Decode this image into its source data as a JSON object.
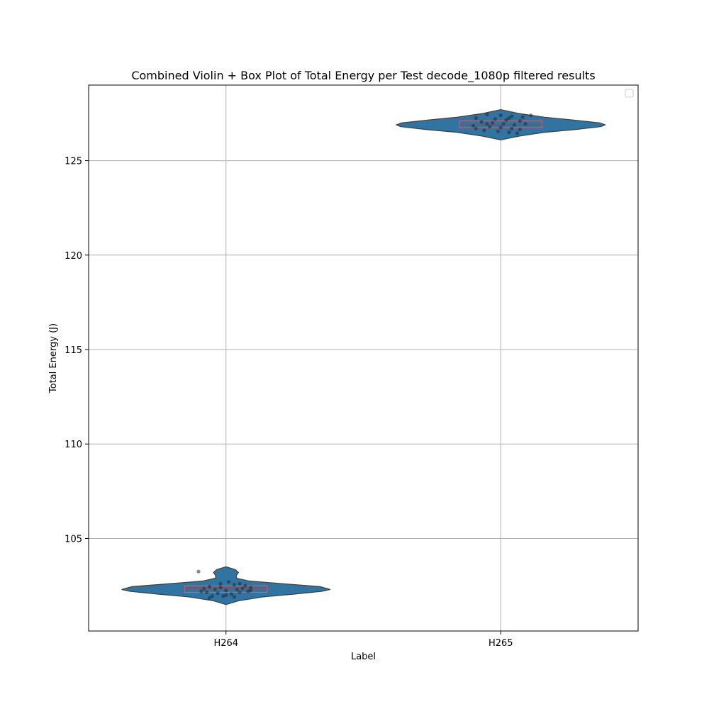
{
  "chart_data": {
    "type": "violin",
    "title": "Combined Violin + Box Plot of Total Energy per Test decode_1080p filtered results",
    "xlabel": "Label",
    "ylabel": "Total Energy (J)",
    "categories": [
      "H264",
      "H265"
    ],
    "ylim": [
      100.1,
      129.0
    ],
    "yticks": [
      105,
      110,
      115,
      120,
      125
    ],
    "grid": true,
    "legend": {
      "placement": "top-right",
      "entries": []
    },
    "colors": {
      "violin_fill": "#3274a1",
      "violin_edge": "#3f3f3f",
      "box_fill": "#3274a1",
      "box_edge": "#c9627c",
      "median": "#c0392b",
      "points": "#1f2a36",
      "grid": "#b0b0b0"
    },
    "violins": [
      {
        "category": "H264",
        "min": 101.5,
        "max": 103.5,
        "q1": 102.15,
        "median": 102.35,
        "q3": 102.5,
        "profile": [
          [
            101.5,
            0.0
          ],
          [
            101.7,
            0.12
          ],
          [
            101.9,
            0.35
          ],
          [
            102.05,
            0.65
          ],
          [
            102.2,
            0.92
          ],
          [
            102.3,
            1.0
          ],
          [
            102.45,
            0.9
          ],
          [
            102.6,
            0.55
          ],
          [
            102.75,
            0.22
          ],
          [
            102.9,
            0.1
          ],
          [
            103.05,
            0.1
          ],
          [
            103.2,
            0.12
          ],
          [
            103.35,
            0.09
          ],
          [
            103.5,
            0.0
          ]
        ],
        "points": [
          [
            -0.1,
            103.25
          ],
          [
            -0.06,
            102.45
          ],
          [
            -0.02,
            102.6
          ],
          [
            0.01,
            102.7
          ],
          [
            0.03,
            102.55
          ],
          [
            0.07,
            102.5
          ],
          [
            0.09,
            102.4
          ],
          [
            -0.08,
            102.35
          ],
          [
            -0.04,
            102.3
          ],
          [
            0.0,
            102.25
          ],
          [
            0.04,
            102.3
          ],
          [
            0.08,
            102.2
          ],
          [
            -0.07,
            102.15
          ],
          [
            -0.03,
            102.1
          ],
          [
            0.02,
            102.05
          ],
          [
            0.05,
            102.15
          ],
          [
            -0.01,
            101.95
          ],
          [
            0.03,
            101.9
          ],
          [
            -0.05,
            101.95
          ],
          [
            0.0,
            102.0
          ],
          [
            -0.09,
            102.2
          ],
          [
            0.06,
            102.35
          ],
          [
            -0.02,
            102.4
          ],
          [
            0.09,
            102.25
          ],
          [
            -0.06,
            101.85
          ],
          [
            0.05,
            102.6
          ]
        ]
      },
      {
        "category": "H265",
        "min": 126.1,
        "max": 127.7,
        "q1": 126.75,
        "median": 126.9,
        "q3": 127.1,
        "profile": [
          [
            126.1,
            0.0
          ],
          [
            126.3,
            0.18
          ],
          [
            126.5,
            0.42
          ],
          [
            126.65,
            0.72
          ],
          [
            126.8,
            0.96
          ],
          [
            126.9,
            1.0
          ],
          [
            127.0,
            0.95
          ],
          [
            127.15,
            0.7
          ],
          [
            127.3,
            0.42
          ],
          [
            127.5,
            0.17
          ],
          [
            127.7,
            0.0
          ]
        ],
        "points": [
          [
            -0.05,
            127.45
          ],
          [
            0.0,
            127.4
          ],
          [
            0.04,
            127.35
          ],
          [
            0.08,
            127.3
          ],
          [
            0.11,
            127.4
          ],
          [
            -0.09,
            127.25
          ],
          [
            -0.02,
            127.2
          ],
          [
            0.02,
            127.15
          ],
          [
            0.07,
            127.1
          ],
          [
            -0.07,
            127.05
          ],
          [
            -0.03,
            127.0
          ],
          [
            0.01,
            126.95
          ],
          [
            0.05,
            126.9
          ],
          [
            0.09,
            126.95
          ],
          [
            -0.1,
            126.85
          ],
          [
            -0.04,
            126.8
          ],
          [
            0.0,
            126.75
          ],
          [
            0.04,
            126.7
          ],
          [
            0.07,
            126.65
          ],
          [
            -0.06,
            126.6
          ],
          [
            -0.01,
            126.55
          ],
          [
            0.03,
            126.5
          ],
          [
            0.06,
            126.45
          ],
          [
            -0.09,
            126.7
          ],
          [
            0.03,
            127.25
          ],
          [
            -0.05,
            126.95
          ]
        ]
      }
    ]
  }
}
